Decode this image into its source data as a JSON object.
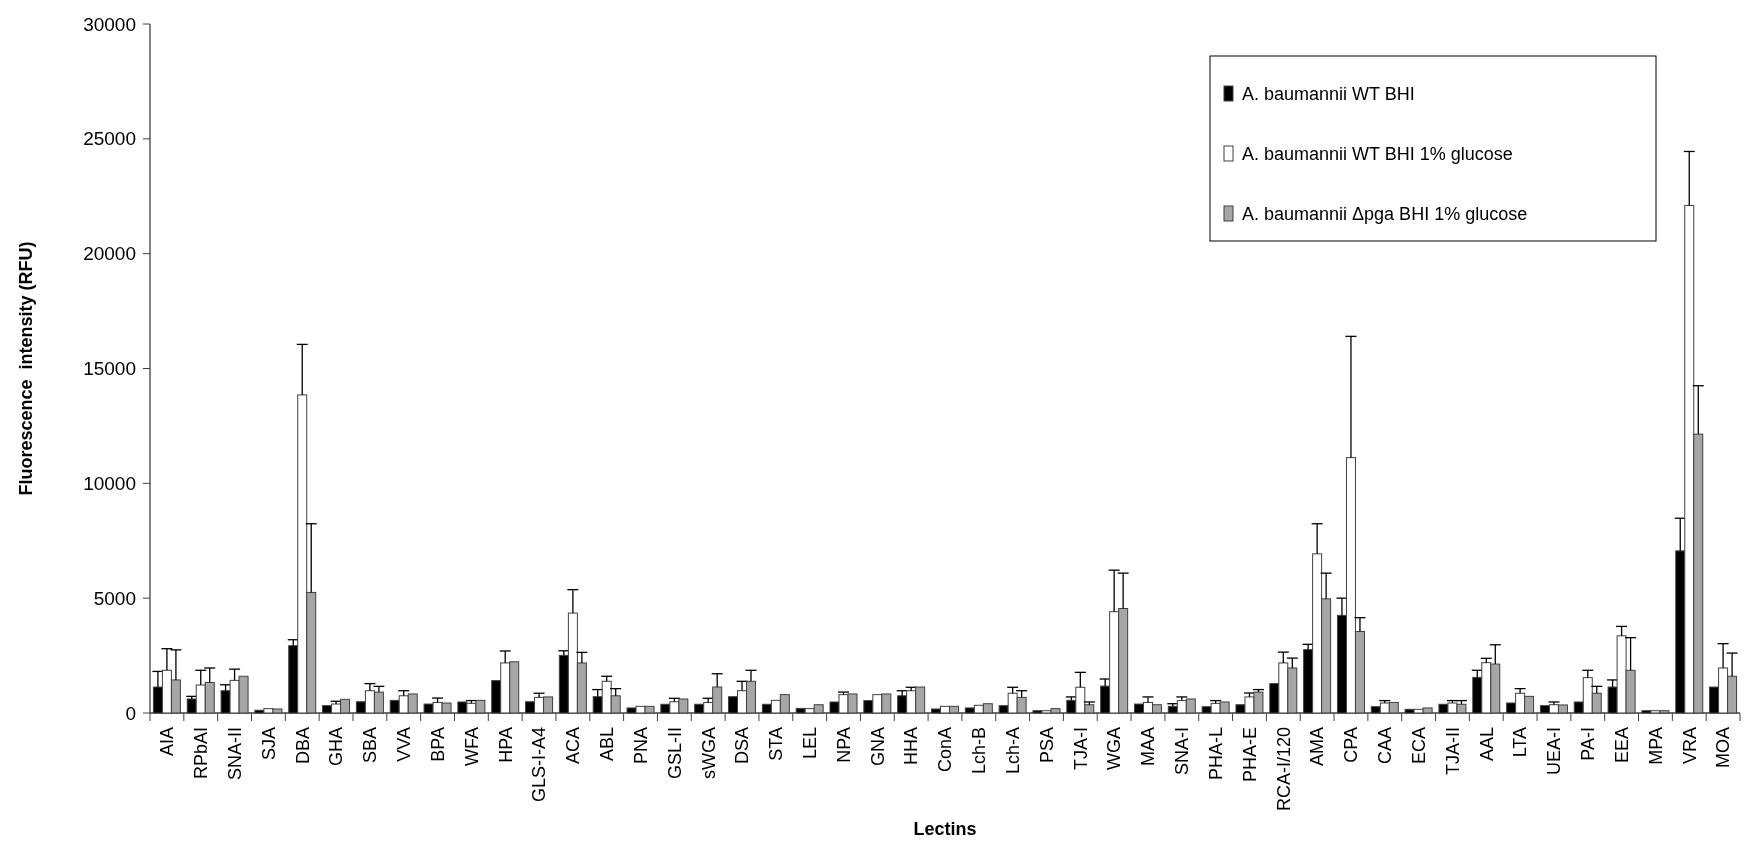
{
  "chart_data": {
    "type": "bar",
    "xlabel": "Lectins",
    "ylabel": "Fluorescence  intensity (RFU)",
    "categories": [
      "AIA",
      "RPbAI",
      "SNA-II",
      "SJA",
      "DBA",
      "GHA",
      "SBA",
      "VVA",
      "BPA",
      "WFA",
      "HPA",
      "GLS-I-A4",
      "ACA",
      "ABL",
      "PNA",
      "GSL-II",
      "sWGA",
      "DSA",
      "STA",
      "LEL",
      "NPA",
      "GNA",
      "HHA",
      "ConA",
      "Lch-B",
      "Lch-A",
      "PSA",
      "TJA-I",
      "WGA",
      "MAA",
      "SNA-I",
      "PHA-L",
      "PHA-E",
      "RCA-I/120",
      "AMA",
      "CPA",
      "CAA",
      "ECA",
      "TJA-II",
      "AAL",
      "LTA",
      "UEA-I",
      "PA-I",
      "EEA",
      "MPA",
      "VRA",
      "MOA"
    ],
    "series": [
      {
        "name": "A. baumannii WT BHI",
        "color": "#000000",
        "values": [
          1130,
          610,
          970,
          120,
          2930,
          320,
          490,
          550,
          390,
          480,
          1410,
          490,
          2510,
          710,
          220,
          380,
          380,
          710,
          380,
          200,
          480,
          540,
          750,
          175,
          220,
          320,
          100,
          550,
          1170,
          390,
          290,
          275,
          360,
          1280,
          2760,
          4250,
          275,
          160,
          380,
          1550,
          435,
          320,
          480,
          1130,
          100,
          7060,
          1130
        ],
        "errors": [
          [
            1130,
            1810
          ],
          [
            610,
            725
          ],
          [
            970,
            1230
          ],
          null,
          [
            2930,
            3190
          ],
          null,
          null,
          null,
          null,
          null,
          null,
          null,
          [
            2510,
            2710
          ],
          [
            710,
            1020
          ],
          null,
          null,
          null,
          null,
          null,
          null,
          null,
          null,
          [
            750,
            970
          ],
          null,
          null,
          null,
          null,
          [
            550,
            700
          ],
          [
            1170,
            1480
          ],
          null,
          [
            290,
            405
          ],
          null,
          null,
          null,
          [
            2760,
            2990
          ],
          [
            4250,
            5000
          ],
          null,
          null,
          null,
          [
            1550,
            1860
          ],
          null,
          null,
          null,
          [
            1130,
            1440
          ],
          null,
          [
            7060,
            8480
          ],
          null
        ]
      },
      {
        "name": "A. baumannii WT BHI 1% glucose",
        "color": "#ffffff",
        "values": [
          1860,
          1220,
          1420,
          190,
          13850,
          390,
          970,
          750,
          460,
          420,
          2180,
          680,
          4350,
          1380,
          290,
          490,
          460,
          970,
          550,
          190,
          800,
          800,
          970,
          290,
          335,
          860,
          100,
          1120,
          4410,
          460,
          540,
          420,
          700,
          2180,
          6930,
          11120,
          435,
          160,
          435,
          2190,
          860,
          360,
          1540,
          3360,
          100,
          22100,
          1960
        ],
        "errors": [
          [
            1860,
            2800
          ],
          [
            1220,
            1860
          ],
          [
            1420,
            1910
          ],
          null,
          [
            13850,
            16050
          ],
          [
            390,
            510
          ],
          [
            970,
            1280
          ],
          [
            750,
            970
          ],
          [
            460,
            650
          ],
          [
            420,
            540
          ],
          [
            2180,
            2700
          ],
          [
            680,
            860
          ],
          [
            4350,
            5370
          ],
          [
            1380,
            1600
          ],
          null,
          [
            490,
            640
          ],
          [
            460,
            640
          ],
          [
            970,
            1380
          ],
          null,
          null,
          [
            800,
            910
          ],
          null,
          [
            970,
            1120
          ],
          null,
          null,
          [
            860,
            1120
          ],
          null,
          [
            1120,
            1770
          ],
          [
            4410,
            6220
          ],
          [
            460,
            700
          ],
          [
            540,
            700
          ],
          [
            420,
            540
          ],
          [
            700,
            870
          ],
          [
            2180,
            2650
          ],
          [
            6930,
            8240
          ],
          [
            11120,
            16400
          ],
          [
            435,
            540
          ],
          null,
          [
            435,
            540
          ],
          [
            2190,
            2380
          ],
          [
            860,
            1060
          ],
          [
            360,
            480
          ],
          [
            1540,
            1860
          ],
          [
            3360,
            3770
          ],
          null,
          [
            22100,
            24450
          ],
          [
            1960,
            3020
          ]
        ]
      },
      {
        "name": "A. baumannii Δpga BHI 1% glucose",
        "color": "#a6a6a6",
        "values": [
          1440,
          1330,
          1600,
          175,
          5250,
          595,
          910,
          830,
          435,
          550,
          2230,
          700,
          2180,
          750,
          290,
          610,
          1130,
          1380,
          800,
          360,
          830,
          830,
          1130,
          290,
          405,
          680,
          190,
          360,
          4550,
          360,
          610,
          480,
          910,
          1960,
          4970,
          3550,
          460,
          220,
          380,
          2130,
          725,
          350,
          860,
          1860,
          100,
          12140,
          1600
        ],
        "errors": [
          [
            1440,
            2750
          ],
          [
            1330,
            1960
          ],
          null,
          null,
          [
            5250,
            8240
          ],
          null,
          [
            910,
            1160
          ],
          null,
          null,
          null,
          null,
          null,
          [
            2180,
            2640
          ],
          [
            750,
            1060
          ],
          null,
          null,
          [
            1130,
            1710
          ],
          [
            1380,
            1860
          ],
          null,
          null,
          null,
          null,
          null,
          null,
          null,
          [
            680,
            970
          ],
          null,
          [
            360,
            480
          ],
          [
            4550,
            6090
          ],
          null,
          null,
          null,
          [
            910,
            1020
          ],
          [
            1960,
            2390
          ],
          [
            4970,
            6090
          ],
          [
            3550,
            4150
          ],
          null,
          null,
          [
            380,
            540
          ],
          [
            2130,
            2970
          ],
          null,
          null,
          [
            860,
            1160
          ],
          [
            1860,
            3280
          ],
          null,
          [
            12140,
            14250
          ],
          [
            1600,
            2610
          ]
        ]
      }
    ],
    "ylim": [
      0,
      30000
    ],
    "yticks": [
      0,
      5000,
      10000,
      15000,
      20000,
      25000,
      30000
    ],
    "grid": false,
    "legend": "top right"
  }
}
